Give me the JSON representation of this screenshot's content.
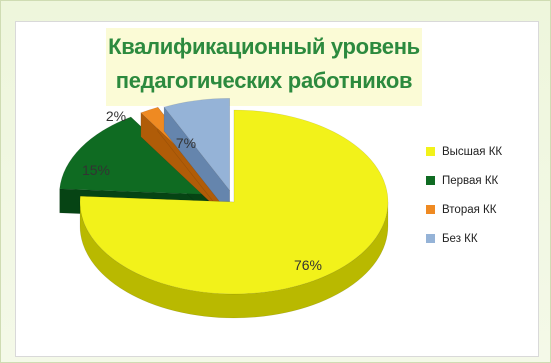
{
  "colors": {
    "background_tint": "#eef6dc",
    "title": "#2c8a3e",
    "title_background": "#fbfbd6"
  },
  "chart_data": {
    "type": "pie",
    "title_line1": "Квалификационный уровень",
    "title_line2": "педагогических работников",
    "three_d": true,
    "legend_position": "right",
    "slices": [
      {
        "label": "Высшая КК",
        "value": 76,
        "display": "76%",
        "color": "#f2f21a",
        "side_color": "#b9b900"
      },
      {
        "label": "Первая КК",
        "value": 15,
        "display": "15%",
        "color": "#0f6b22",
        "side_color": "#064414"
      },
      {
        "label": "Вторая КК",
        "value": 2,
        "display": "2%",
        "color": "#ef8a22",
        "side_color": "#b05c08"
      },
      {
        "label": "Без КК",
        "value": 7,
        "display": "7%",
        "color": "#95b3d7",
        "side_color": "#6585ad"
      }
    ]
  }
}
